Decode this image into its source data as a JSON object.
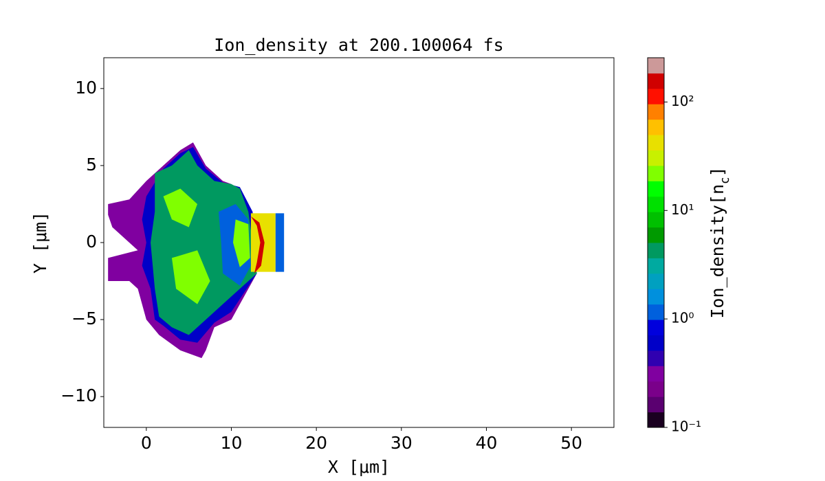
{
  "chart_data": {
    "type": "contour",
    "title": "Ion_density at 200.100064 fs",
    "xlabel": "X [μm]",
    "ylabel": "Y [μm]",
    "xlim": [
      -5,
      55
    ],
    "ylim": [
      -12,
      12
    ],
    "xticks": [
      0,
      10,
      20,
      30,
      40,
      50
    ],
    "yticks": [
      {
        "value": -10,
        "label": "−10"
      },
      {
        "value": -5,
        "label": "−5"
      },
      0,
      5,
      10
    ],
    "log_scale_color": true,
    "colorbar": {
      "label": "Ion_density[n_{c}]",
      "lim": [
        0.1,
        256
      ],
      "ticks": [
        {
          "value": 0.1,
          "label": "10⁻¹"
        },
        {
          "value": 1,
          "label": "10⁰"
        },
        {
          "value": 10,
          "label": "10¹"
        },
        {
          "value": 100,
          "label": "10²"
        }
      ],
      "colors": [
        "#1a0020",
        "#5a0070",
        "#7a008a",
        "#8000a0",
        "#3000b0",
        "#0000c8",
        "#0000dd",
        "#0060dd",
        "#0090dd",
        "#00a0c0",
        "#00aaa0",
        "#009960",
        "#009a00",
        "#00c000",
        "#00e000",
        "#00ff00",
        "#80ff00",
        "#c8f000",
        "#e8e000",
        "#ffc000",
        "#ff8000",
        "#ff1000",
        "#d00000",
        "#cc9999"
      ]
    },
    "regions": [
      {
        "value": 0.3,
        "points": [
          [
            -4.5,
            2.5
          ],
          [
            -2,
            2.8
          ],
          [
            0,
            4
          ],
          [
            2,
            5
          ],
          [
            4,
            6
          ],
          [
            5.5,
            6.5
          ],
          [
            7,
            5
          ],
          [
            9,
            4
          ],
          [
            10,
            3.8
          ],
          [
            12,
            2.5
          ],
          [
            13,
            -2
          ],
          [
            10,
            -5
          ],
          [
            8,
            -5.5
          ],
          [
            7,
            -7
          ],
          [
            6.5,
            -7.5
          ],
          [
            4,
            -7
          ],
          [
            1.5,
            -6
          ],
          [
            0,
            -5
          ],
          [
            -1,
            -3
          ],
          [
            -2,
            -2.5
          ],
          [
            -4.5,
            -2.5
          ],
          [
            -4.5,
            -1
          ],
          [
            -1,
            -0.5
          ],
          [
            -4,
            1
          ],
          [
            -4.5,
            1.8
          ]
        ]
      },
      {
        "value": 0.7,
        "points": [
          [
            0,
            3
          ],
          [
            2,
            4.8
          ],
          [
            4,
            5.8
          ],
          [
            5.5,
            6.2
          ],
          [
            7,
            4.8
          ],
          [
            9,
            3.9
          ],
          [
            11,
            3.6
          ],
          [
            12.5,
            2
          ],
          [
            13,
            -2
          ],
          [
            10,
            -4.5
          ],
          [
            8,
            -5.2
          ],
          [
            6,
            -6.5
          ],
          [
            4,
            -6.3
          ],
          [
            2,
            -5.4
          ],
          [
            1,
            -5
          ],
          [
            0.5,
            -3
          ],
          [
            -0.5,
            -1.5
          ],
          [
            0,
            0
          ],
          [
            -0.5,
            1.5
          ]
        ]
      },
      {
        "value": 5,
        "points": [
          [
            1,
            4.5
          ],
          [
            3,
            5
          ],
          [
            5,
            6
          ],
          [
            6,
            5
          ],
          [
            8,
            4
          ],
          [
            10,
            3.8
          ],
          [
            11,
            3.5
          ],
          [
            12,
            2
          ],
          [
            13,
            -2
          ],
          [
            11,
            -3
          ],
          [
            9,
            -4
          ],
          [
            7,
            -5
          ],
          [
            5,
            -6
          ],
          [
            3,
            -5.5
          ],
          [
            1.5,
            -4.8
          ],
          [
            1,
            -3
          ],
          [
            0.5,
            0
          ],
          [
            1,
            2
          ]
        ]
      },
      {
        "value": 40,
        "points": [
          [
            12.3,
            1.9
          ],
          [
            15.2,
            1.9
          ],
          [
            15.2,
            -1.9
          ],
          [
            12.3,
            -1.9
          ]
        ]
      },
      {
        "value": 1,
        "points": [
          [
            15.2,
            1.9
          ],
          [
            16.2,
            1.9
          ],
          [
            16.2,
            -1.9
          ],
          [
            15.2,
            -1.9
          ]
        ]
      },
      {
        "value": 1,
        "points": [
          [
            8.5,
            2
          ],
          [
            10.5,
            2.5
          ],
          [
            12,
            1.5
          ],
          [
            12.3,
            -1.5
          ],
          [
            11,
            -2.8
          ],
          [
            9,
            -2
          ],
          [
            8.8,
            0
          ]
        ]
      },
      {
        "value": 20,
        "points": [
          [
            2,
            3
          ],
          [
            4,
            3.5
          ],
          [
            6,
            2.5
          ],
          [
            5,
            1
          ],
          [
            3,
            1.5
          ]
        ]
      },
      {
        "value": 20,
        "points": [
          [
            3,
            -1
          ],
          [
            6,
            -0.5
          ],
          [
            7.5,
            -2.5
          ],
          [
            6,
            -4
          ],
          [
            3.5,
            -3
          ]
        ]
      },
      {
        "value": 20,
        "points": [
          [
            10.5,
            1.5
          ],
          [
            12,
            1.2
          ],
          [
            12.2,
            -1
          ],
          [
            11,
            -1.6
          ],
          [
            10.2,
            0
          ]
        ]
      },
      {
        "value": 150,
        "points": [
          [
            12.3,
            1.7
          ],
          [
            13.3,
            1.3
          ],
          [
            13.9,
            0
          ],
          [
            13.5,
            -1.5
          ],
          [
            12.7,
            -2
          ],
          [
            13,
            -1.3
          ],
          [
            13.4,
            0
          ],
          [
            13,
            1.1
          ]
        ]
      }
    ]
  }
}
